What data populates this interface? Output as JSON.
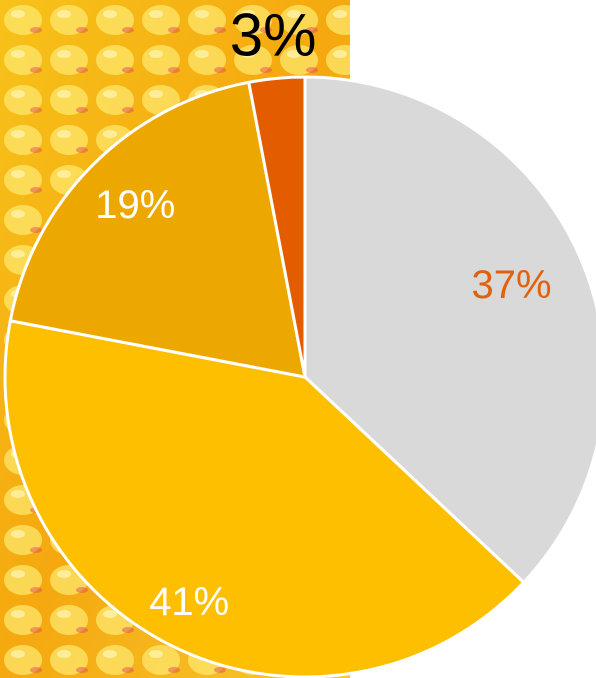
{
  "chart_data": {
    "type": "pie",
    "categories": [
      null,
      null,
      null,
      null
    ],
    "values": [
      37,
      41,
      19,
      3
    ],
    "value_labels": [
      "37%",
      "41%",
      "19%",
      "3%"
    ],
    "colors": [
      "#d9d9d9",
      "#fdbf00",
      "#eda800",
      "#e35d00"
    ],
    "label_colors": [
      "#e0620c",
      "#ffffff",
      "#ffffff",
      "#000000"
    ]
  }
}
